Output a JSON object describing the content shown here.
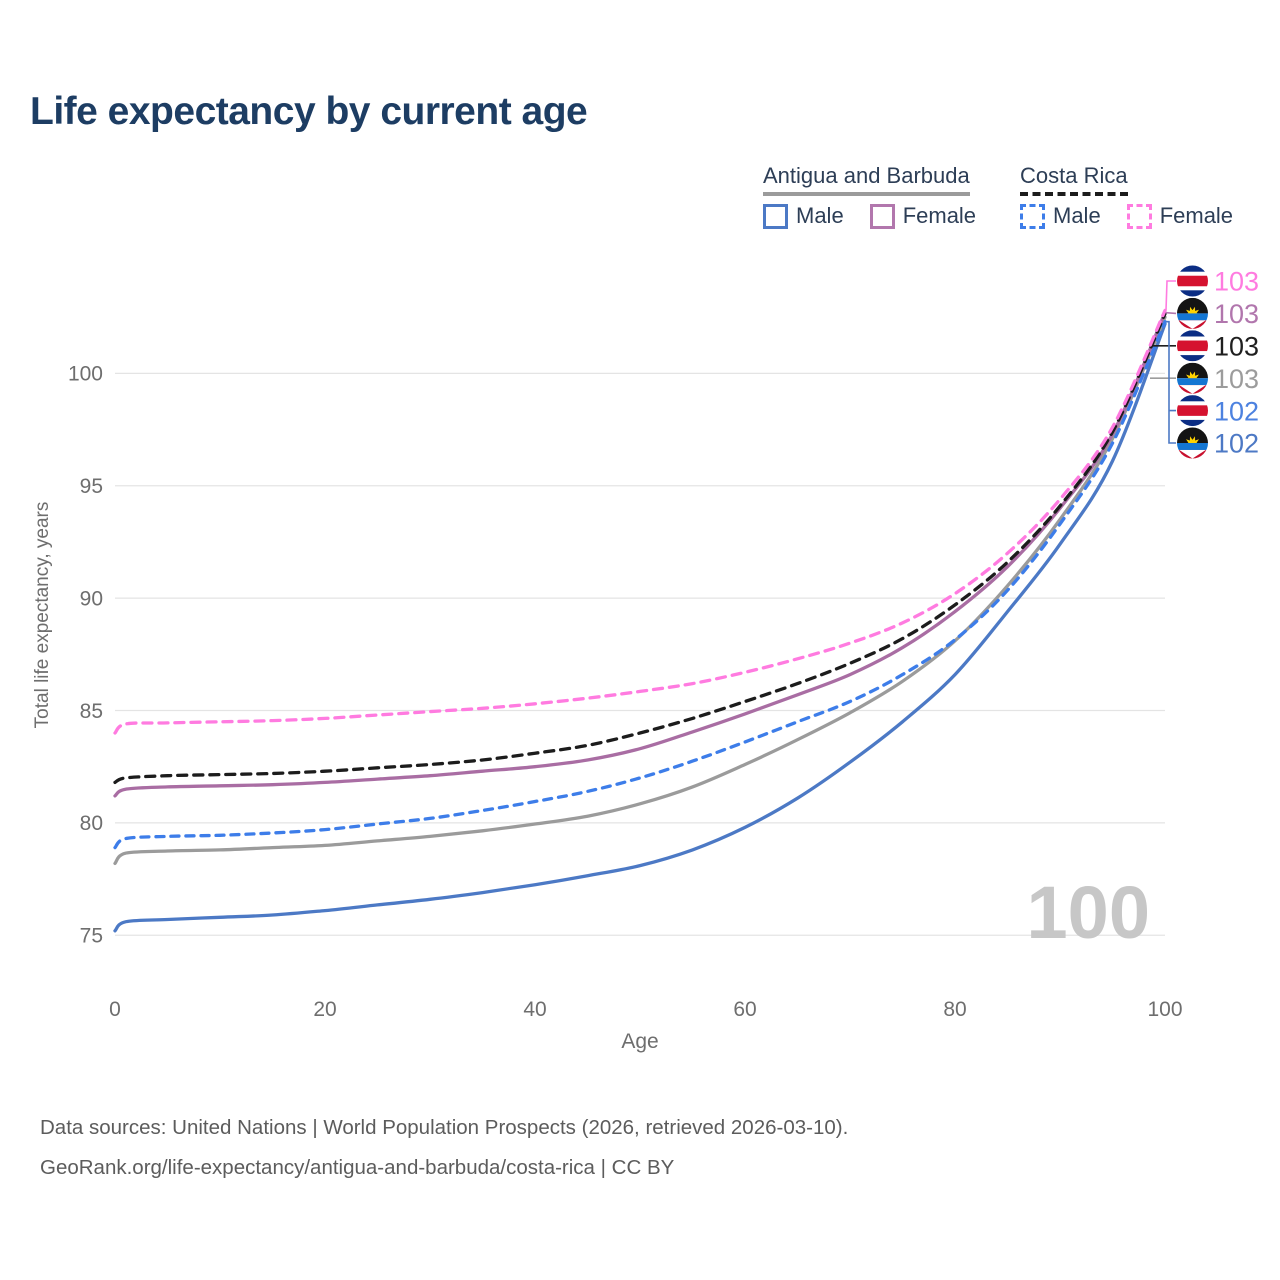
{
  "header": {
    "title": "Life expectancy by current age"
  },
  "legend": {
    "groups": [
      {
        "name": "Antigua and Barbuda",
        "line_style": "solid",
        "line_color": "#9b9b9b",
        "items": [
          {
            "label": "Male",
            "color": "#4c79c5",
            "style": "solid"
          },
          {
            "label": "Female",
            "color": "#b277ad",
            "style": "solid"
          }
        ]
      },
      {
        "name": "Costa Rica",
        "line_style": "dashed",
        "line_color": "#1c1c1c",
        "items": [
          {
            "label": "Male",
            "color": "#3d7de9",
            "style": "dashed"
          },
          {
            "label": "Female",
            "color": "#ff7be0",
            "style": "dashed"
          }
        ]
      }
    ]
  },
  "chart_data": {
    "type": "line",
    "title": "Life expectancy by current age",
    "xlabel": "Age",
    "ylabel": "Total life expectancy, years",
    "xlim": [
      0,
      100
    ],
    "ylim": [
      73.9,
      104.6
    ],
    "xticks": [
      0,
      20,
      40,
      60,
      80,
      100
    ],
    "yticks": [
      75,
      80,
      85,
      90,
      95,
      100
    ],
    "grid": "horizontal",
    "legend_position": "top-right",
    "watermark": "100",
    "x": [
      0,
      1,
      5,
      10,
      15,
      20,
      25,
      30,
      35,
      40,
      45,
      50,
      55,
      60,
      65,
      70,
      75,
      80,
      85,
      90,
      95,
      100
    ],
    "series": [
      {
        "id": "ab-male",
        "name": "Antigua and Barbuda Male",
        "country": "Antigua and Barbuda",
        "sex": "Male",
        "color": "#4c79c5",
        "dash": "",
        "flag": "ab",
        "values": [
          75.2,
          75.6,
          75.7,
          75.8,
          75.9,
          76.1,
          76.35,
          76.6,
          76.9,
          77.25,
          77.65,
          78.1,
          78.8,
          79.8,
          81.1,
          82.7,
          84.5,
          86.6,
          89.4,
          92.4,
          96.1,
          102.2
        ]
      },
      {
        "id": "ab-total",
        "name": "Antigua and Barbuda",
        "country": "Antigua and Barbuda",
        "sex": "Both",
        "color": "#9b9b9b",
        "dash": "",
        "flag": "ab",
        "values": [
          78.2,
          78.65,
          78.75,
          78.8,
          78.9,
          79.0,
          79.2,
          79.4,
          79.65,
          79.95,
          80.3,
          80.85,
          81.6,
          82.6,
          83.7,
          84.9,
          86.3,
          88.1,
          90.55,
          93.5,
          97.1,
          102.5
        ]
      },
      {
        "id": "cr-male",
        "name": "Costa Rica Male",
        "country": "Costa Rica",
        "sex": "Male",
        "color": "#3d7de9",
        "dash": "8 7",
        "flag": "cr",
        "values": [
          78.9,
          79.3,
          79.4,
          79.45,
          79.55,
          79.7,
          79.95,
          80.2,
          80.55,
          80.95,
          81.4,
          82.0,
          82.75,
          83.6,
          84.5,
          85.4,
          86.6,
          88.15,
          90.35,
          93.3,
          96.9,
          102.3
        ]
      },
      {
        "id": "ab-female",
        "name": "Antigua and Barbuda Female",
        "country": "Antigua and Barbuda",
        "sex": "Female",
        "color": "#a96da3",
        "dash": "",
        "flag": "ab",
        "values": [
          81.2,
          81.5,
          81.6,
          81.65,
          81.7,
          81.8,
          81.95,
          82.1,
          82.3,
          82.5,
          82.8,
          83.3,
          84.05,
          84.85,
          85.7,
          86.6,
          87.8,
          89.4,
          91.4,
          94.0,
          97.3,
          102.7
        ]
      },
      {
        "id": "cr-total",
        "name": "Costa Rica",
        "country": "Costa Rica",
        "sex": "Both",
        "color": "#1c1c1c",
        "dash": "9 7",
        "flag": "cr",
        "values": [
          81.8,
          82.0,
          82.1,
          82.15,
          82.2,
          82.3,
          82.45,
          82.6,
          82.8,
          83.1,
          83.45,
          84.0,
          84.65,
          85.4,
          86.2,
          87.1,
          88.2,
          89.7,
          91.6,
          94.1,
          97.4,
          102.65
        ]
      },
      {
        "id": "cr-female",
        "name": "Costa Rica Female",
        "country": "Costa Rica",
        "sex": "Female",
        "color": "#ff7be0",
        "dash": "9 7",
        "flag": "cr",
        "values": [
          84.0,
          84.4,
          84.45,
          84.5,
          84.55,
          84.65,
          84.8,
          84.95,
          85.1,
          85.3,
          85.55,
          85.85,
          86.2,
          86.7,
          87.3,
          88.0,
          88.9,
          90.2,
          92.0,
          94.4,
          97.6,
          102.8
        ]
      }
    ],
    "end_labels": [
      {
        "text": "103",
        "flag": "cr",
        "series": "cr-female",
        "color": "#ff7be0"
      },
      {
        "text": "103",
        "flag": "ab",
        "series": "ab-female",
        "color": "#b176ad"
      },
      {
        "text": "103",
        "flag": "cr",
        "series": "cr-total",
        "color": "#1f1f1f"
      },
      {
        "text": "103",
        "flag": "ab",
        "series": "ab-total",
        "color": "#9c9c9c"
      },
      {
        "text": "102",
        "flag": "cr",
        "series": "cr-male",
        "color": "#4d82e0"
      },
      {
        "text": "102",
        "flag": "ab",
        "series": "ab-male",
        "color": "#4d79c5"
      }
    ]
  },
  "footer": {
    "line1": "Data sources: United Nations | World Population Prospects (2026, retrieved 2026-03-10).",
    "line2": "GeoRank.org/life-expectancy/antigua-and-barbuda/costa-rica | CC BY"
  },
  "colors": {
    "title": "#1d3d63",
    "axis_text": "#6e6e6e",
    "gridline": "#e4e4e4",
    "watermark": "#c7c7c7",
    "footer_text": "#5c5c5c"
  }
}
